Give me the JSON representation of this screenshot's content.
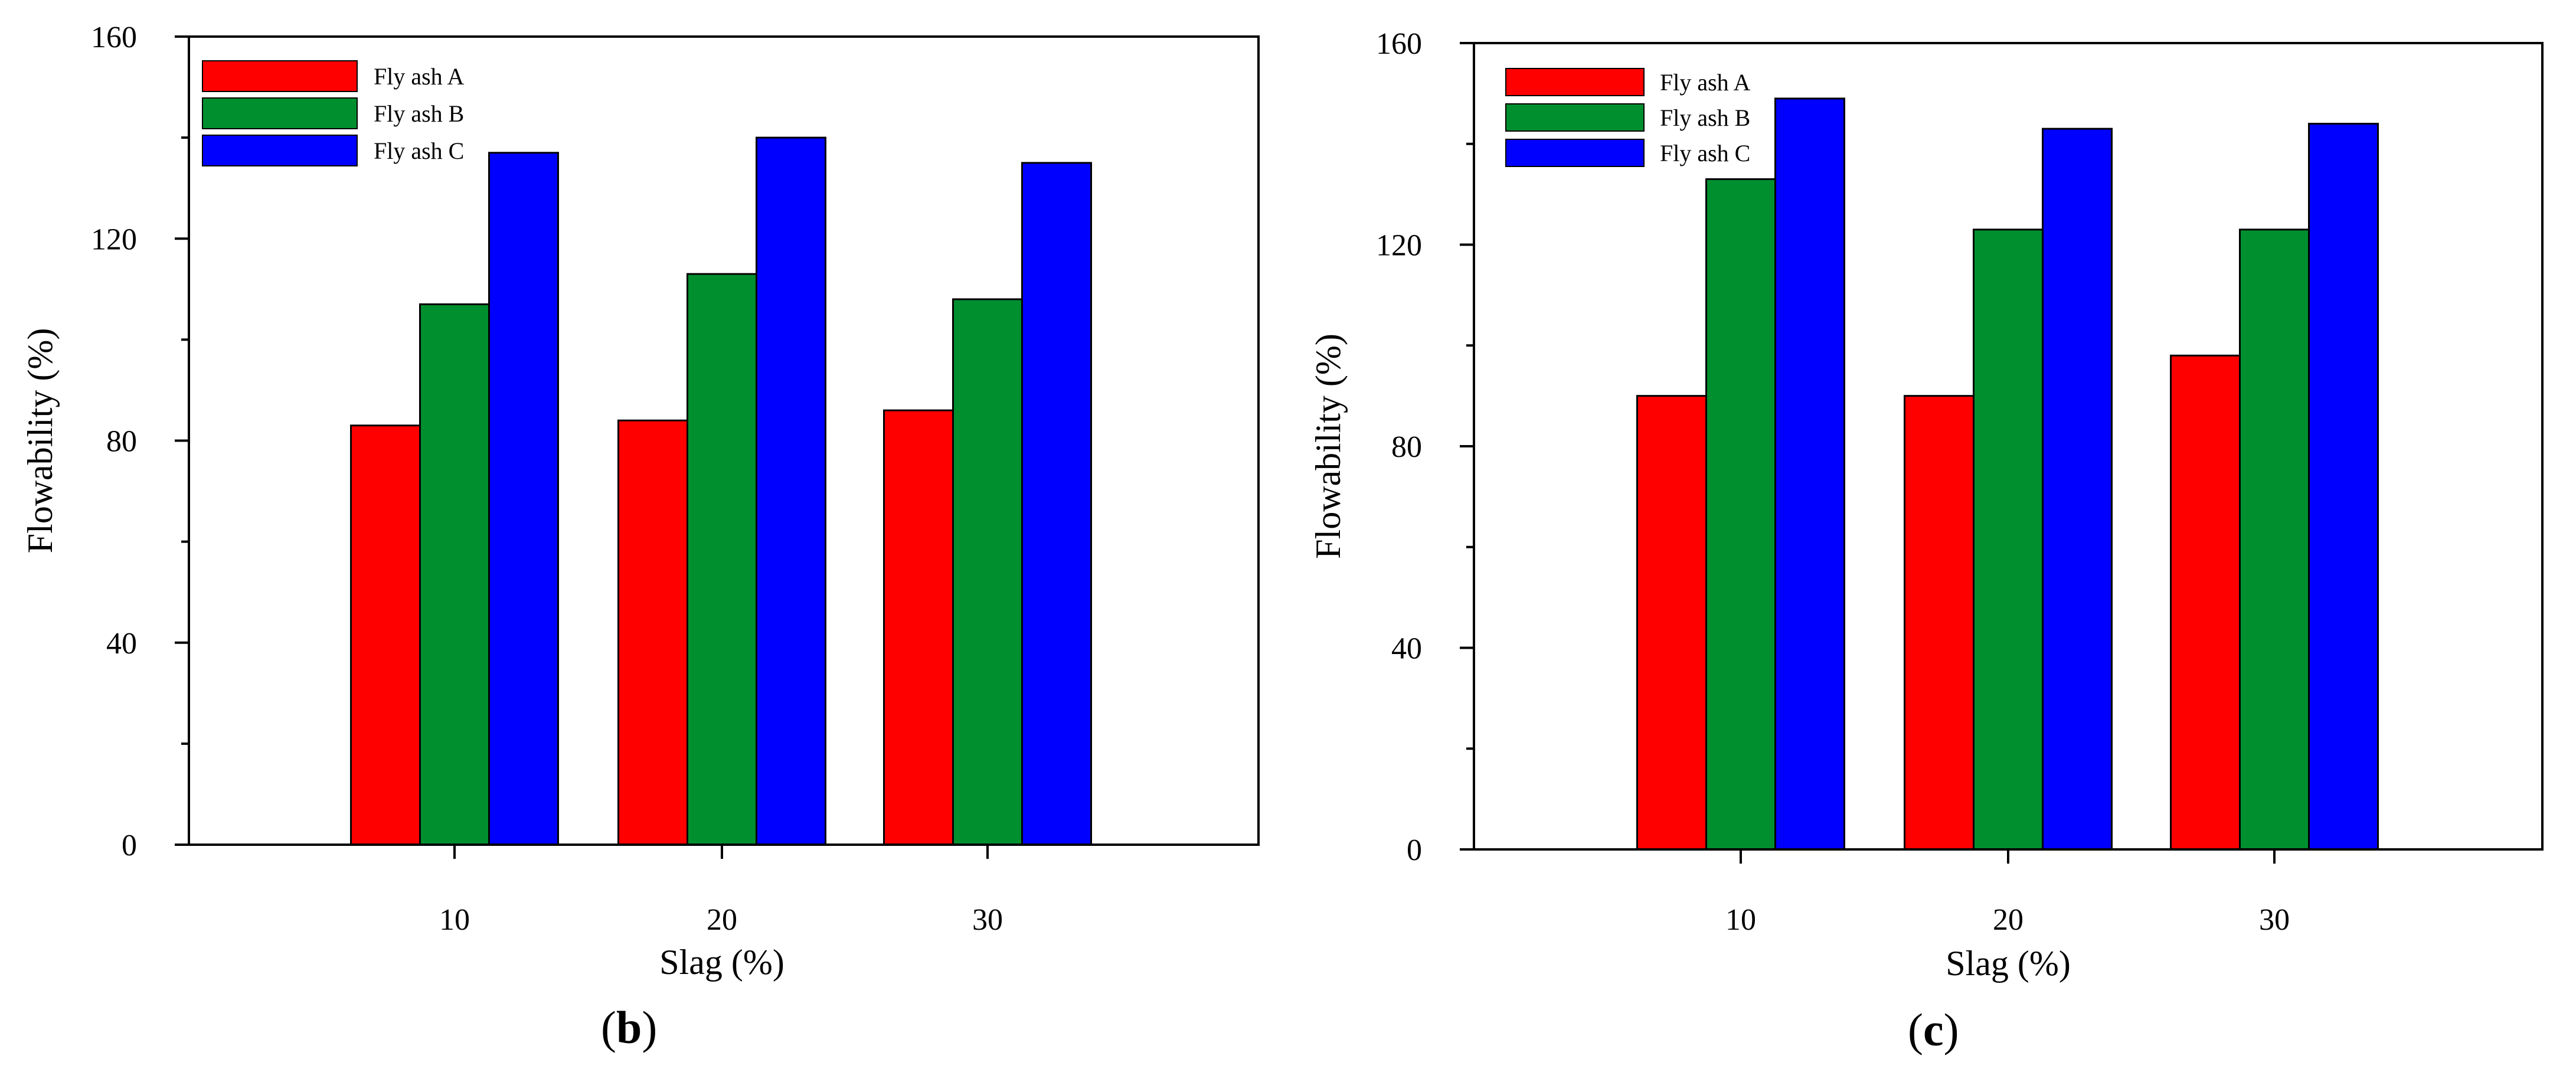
{
  "colors": {
    "fly_ash_a": "#ff0000",
    "fly_ash_b": "#008f2f",
    "fly_ash_c": "#0000ff",
    "axis": "#000000"
  },
  "captions": [
    {
      "open": "(",
      "letter": "b",
      "close": ")"
    },
    {
      "open": "(",
      "letter": "c",
      "close": ")"
    }
  ],
  "chart_data": [
    {
      "type": "bar",
      "title": "",
      "xlabel": "Slag (%)",
      "ylabel": "Flowability (%)",
      "ylim": [
        0,
        160
      ],
      "yticks": [
        "0",
        "40",
        "80",
        "120",
        "160"
      ],
      "categories": [
        "10",
        "20",
        "30"
      ],
      "legend_position": "top-left",
      "series": [
        {
          "name": "Fly ash A",
          "color": "#ff0000",
          "values": [
            83,
            84,
            86
          ]
        },
        {
          "name": "Fly ash B",
          "color": "#008f2f",
          "values": [
            107,
            113,
            108
          ]
        },
        {
          "name": "Fly ash C",
          "color": "#0000ff",
          "values": [
            137,
            140,
            135
          ]
        }
      ]
    },
    {
      "type": "bar",
      "title": "",
      "xlabel": "Slag (%)",
      "ylabel": "Flowability (%)",
      "ylim": [
        0,
        160
      ],
      "yticks": [
        "0",
        "40",
        "80",
        "120",
        "160"
      ],
      "categories": [
        "10",
        "20",
        "30"
      ],
      "legend_position": "top-left",
      "series": [
        {
          "name": "Fly ash A",
          "color": "#ff0000",
          "values": [
            90,
            90,
            98
          ]
        },
        {
          "name": "Fly ash B",
          "color": "#008f2f",
          "values": [
            133,
            123,
            123
          ]
        },
        {
          "name": "Fly ash C",
          "color": "#0000ff",
          "values": [
            149,
            143,
            144
          ]
        }
      ]
    }
  ]
}
